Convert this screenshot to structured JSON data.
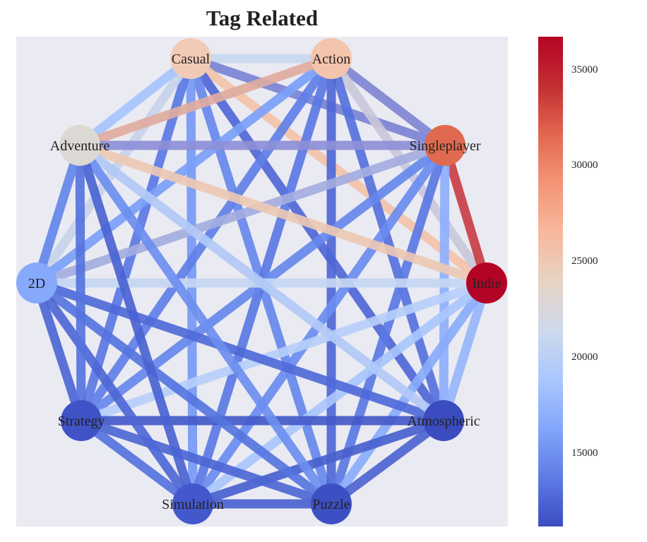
{
  "title": "Tag Related",
  "colorbar": {
    "colors": [
      "#3b4cc0",
      "#5d7ce6",
      "#82a6fb",
      "#aac7fd",
      "#cdd9ec",
      "#e7d3c4",
      "#f7b89c",
      "#f39577",
      "#e16751",
      "#c32e31",
      "#b40426"
    ],
    "ticks": [
      "15000",
      "20000",
      "25000",
      "30000",
      "35000"
    ]
  },
  "nodes": [
    {
      "id": "Casual",
      "label": "Casual",
      "color": "#f2cbb7"
    },
    {
      "id": "Action",
      "label": "Action",
      "color": "#f4c5ad"
    },
    {
      "id": "Singleplayer",
      "label": "Singleplayer",
      "color": "#e06a4f"
    },
    {
      "id": "Indie",
      "label": "Indie",
      "color": "#b40426"
    },
    {
      "id": "Atmospheric",
      "label": "Atmospheric",
      "color": "#3b4cc0"
    },
    {
      "id": "Puzzle",
      "label": "Puzzle",
      "color": "#3d50c3"
    },
    {
      "id": "Simulation",
      "label": "Simulation",
      "color": "#4358cb"
    },
    {
      "id": "Strategy",
      "label": "Strategy",
      "color": "#3f53c6"
    },
    {
      "id": "2D",
      "label": "2D",
      "color": "#86a9fc"
    },
    {
      "id": "Adventure",
      "label": "Adventure",
      "color": "#dcd8d3"
    }
  ],
  "edges": [
    {
      "s": "Casual",
      "t": "Action",
      "color": "#c8d7f0"
    },
    {
      "s": "Casual",
      "t": "Singleplayer",
      "color": "#7b83d6"
    },
    {
      "s": "Casual",
      "t": "Indie",
      "color": "#f3c2a9"
    },
    {
      "s": "Casual",
      "t": "Atmospheric",
      "color": "#4f67d6"
    },
    {
      "s": "Casual",
      "t": "Puzzle",
      "color": "#6688ed"
    },
    {
      "s": "Casual",
      "t": "Simulation",
      "color": "#7599f5"
    },
    {
      "s": "Casual",
      "t": "Strategy",
      "color": "#5a78e4"
    },
    {
      "s": "Casual",
      "t": "2D",
      "color": "#c7d3ea"
    },
    {
      "s": "Casual",
      "t": "Adventure",
      "color": "#a6c3fc"
    },
    {
      "s": "Action",
      "t": "Singleplayer",
      "color": "#7f86d4"
    },
    {
      "s": "Action",
      "t": "Indie",
      "color": "#c9c7db"
    },
    {
      "s": "Action",
      "t": "Atmospheric",
      "color": "#5571dc"
    },
    {
      "s": "Action",
      "t": "Puzzle",
      "color": "#4f67d6"
    },
    {
      "s": "Action",
      "t": "Simulation",
      "color": "#5a78e4"
    },
    {
      "s": "Action",
      "t": "Strategy",
      "color": "#5f7fe8"
    },
    {
      "s": "Action",
      "t": "2D",
      "color": "#7ba0f8"
    },
    {
      "s": "Action",
      "t": "Adventure",
      "color": "#dfab9f"
    },
    {
      "s": "Singleplayer",
      "t": "Indie",
      "color": "#c93e45"
    },
    {
      "s": "Singleplayer",
      "t": "Atmospheric",
      "color": "#8daffd"
    },
    {
      "s": "Singleplayer",
      "t": "Puzzle",
      "color": "#5a78e4"
    },
    {
      "s": "Singleplayer",
      "t": "Simulation",
      "color": "#6a8cf0"
    },
    {
      "s": "Singleplayer",
      "t": "Strategy",
      "color": "#6588ec"
    },
    {
      "s": "Singleplayer",
      "t": "2D",
      "color": "#a4acdf"
    },
    {
      "s": "Singleplayer",
      "t": "Adventure",
      "color": "#8d8fd8"
    },
    {
      "s": "Indie",
      "t": "Atmospheric",
      "color": "#96b5fb"
    },
    {
      "s": "Indie",
      "t": "Puzzle",
      "color": "#89abfb"
    },
    {
      "s": "Indie",
      "t": "Simulation",
      "color": "#a8c5fd"
    },
    {
      "s": "Indie",
      "t": "Strategy",
      "color": "#b6cefa"
    },
    {
      "s": "Indie",
      "t": "2D",
      "color": "#c5d6f2"
    },
    {
      "s": "Indie",
      "t": "Adventure",
      "color": "#edc8b4"
    },
    {
      "s": "Atmospheric",
      "t": "Puzzle",
      "color": "#4d65d3"
    },
    {
      "s": "Atmospheric",
      "t": "Simulation",
      "color": "#4861cf"
    },
    {
      "s": "Atmospheric",
      "t": "Strategy",
      "color": "#4359c9"
    },
    {
      "s": "Atmospheric",
      "t": "2D",
      "color": "#4f6ad9"
    },
    {
      "s": "Atmospheric",
      "t": "Adventure",
      "color": "#b1c9f6"
    },
    {
      "s": "Puzzle",
      "t": "Simulation",
      "color": "#4a62d1"
    },
    {
      "s": "Puzzle",
      "t": "Strategy",
      "color": "#4d66d4"
    },
    {
      "s": "Puzzle",
      "t": "2D",
      "color": "#5574df"
    },
    {
      "s": "Puzzle",
      "t": "Adventure",
      "color": "#6b8eef"
    },
    {
      "s": "Simulation",
      "t": "Strategy",
      "color": "#5573de"
    },
    {
      "s": "Simulation",
      "t": "2D",
      "color": "#4e67d6"
    },
    {
      "s": "Simulation",
      "t": "Adventure",
      "color": "#4a63d3"
    },
    {
      "s": "Strategy",
      "t": "2D",
      "color": "#4d66d5"
    },
    {
      "s": "Strategy",
      "t": "Adventure",
      "color": "#5573de"
    },
    {
      "s": "2D",
      "t": "Adventure",
      "color": "#6286ea"
    }
  ]
}
